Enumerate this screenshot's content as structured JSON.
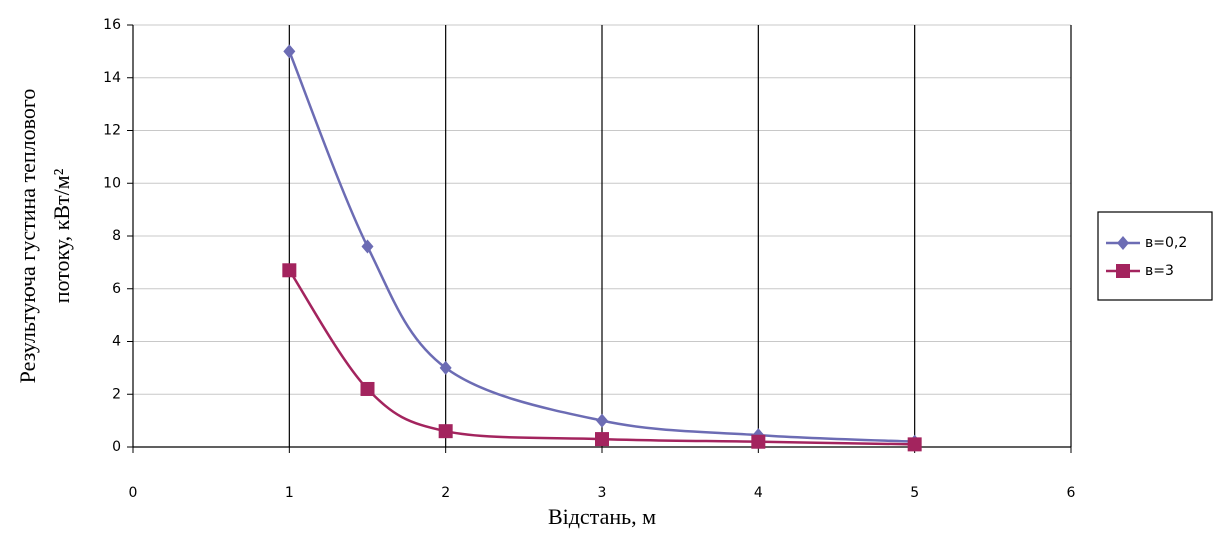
{
  "chart_data": {
    "type": "scatter",
    "y_label_lines": [
      "Результуюча густина теплового",
      "потоку, кВт/м²"
    ],
    "x_label": "Відстань, м",
    "xlim": [
      0,
      6
    ],
    "xticks": [
      0,
      1,
      2,
      3,
      4,
      5,
      6
    ],
    "ylim": [
      0,
      16
    ],
    "yticks": [
      0,
      2,
      4,
      6,
      8,
      10,
      12,
      14,
      16
    ],
    "grid": true,
    "legend": "right",
    "smooth": true,
    "series": [
      {
        "name": "в=0,2",
        "color": "#6c6cb4",
        "marker": "diamond",
        "x": [
          1,
          1.5,
          2,
          3,
          4,
          5
        ],
        "values": [
          15,
          7.6,
          3,
          1,
          0.45,
          0.2
        ]
      },
      {
        "name": "в=3",
        "color": "#a3245e",
        "marker": "square",
        "x": [
          1,
          1.5,
          2,
          3,
          4,
          5
        ],
        "values": [
          6.7,
          2.2,
          0.6,
          0.3,
          0.2,
          0.1
        ]
      }
    ]
  }
}
